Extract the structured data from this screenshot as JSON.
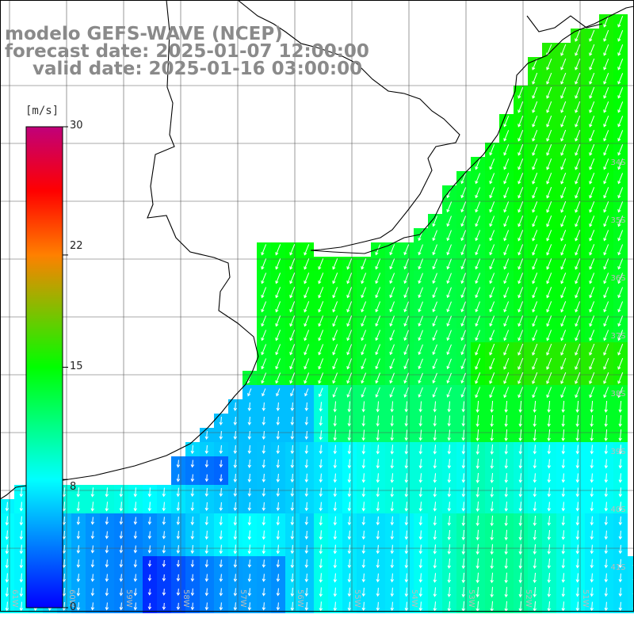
{
  "title": {
    "line1": "modelo GEFS-WAVE (NCEP)",
    "line2": "forecast date: 2025-01-07 12:00:00",
    "line3": "valid date: 2025-01-16 03:00:00"
  },
  "colorbar": {
    "unit": "[m/s]",
    "ticks": [
      "30",
      "22",
      "15",
      "8",
      "0"
    ],
    "tick_values": [
      30,
      22,
      15,
      8,
      0
    ],
    "range": [
      0,
      30
    ],
    "stops": [
      {
        "v": 0,
        "c": "#0000ff"
      },
      {
        "v": 8,
        "c": "#00ffff"
      },
      {
        "v": 15,
        "c": "#00ff00"
      },
      {
        "v": 22,
        "c": "#ff8000"
      },
      {
        "v": 26,
        "c": "#ff0000"
      },
      {
        "v": 30,
        "c": "#c0007a"
      }
    ]
  },
  "map": {
    "lat_labels": [
      "34S",
      "35S",
      "36S",
      "37S",
      "38S",
      "39S",
      "40S",
      "41S"
    ],
    "lon_labels": [
      "61W",
      "60W",
      "59W",
      "58W",
      "57W",
      "56W",
      "55W",
      "54W",
      "53W",
      "52W",
      "51W"
    ],
    "coastline_color": "#000000",
    "grid_color": "#555555",
    "arrow_color": "#ffffff"
  }
}
